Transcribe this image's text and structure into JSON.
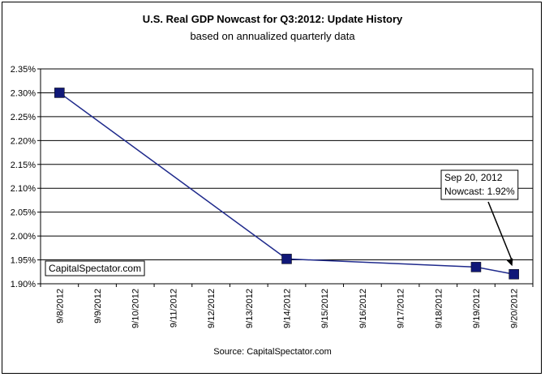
{
  "chart_data": {
    "type": "line",
    "title": "U.S. Real GDP Nowcast for Q3:2012: Update History",
    "subtitle": "based on annualized quarterly data",
    "xlabel": "",
    "ylabel": "",
    "categories": [
      "9/8/2012",
      "9/9/2012",
      "9/10/2012",
      "9/11/2012",
      "9/12/2012",
      "9/13/2012",
      "9/14/2012",
      "9/15/2012",
      "9/16/2012",
      "9/17/2012",
      "9/18/2012",
      "9/19/2012",
      "9/20/2012"
    ],
    "series": [
      {
        "points": [
          {
            "x": "9/8/2012",
            "y": 2.3
          },
          {
            "x": "9/14/2012",
            "y": 1.952
          },
          {
            "x": "9/19/2012",
            "y": 1.935
          },
          {
            "x": "9/20/2012",
            "y": 1.92
          }
        ]
      }
    ],
    "ylim": [
      1.9,
      2.35
    ],
    "yticks": [
      "1.90%",
      "1.95%",
      "2.00%",
      "2.05%",
      "2.10%",
      "2.15%",
      "2.20%",
      "2.25%",
      "2.30%",
      "2.35%"
    ],
    "grid": true,
    "line_color": "#1f2a8c",
    "marker_color": "#101878",
    "annotation": {
      "line1": "Sep 20, 2012",
      "line2": "Nowcast: 1.92%"
    },
    "watermark": "CapitalSpectator.com",
    "source": "Source:  CapitalSpectator.com"
  }
}
